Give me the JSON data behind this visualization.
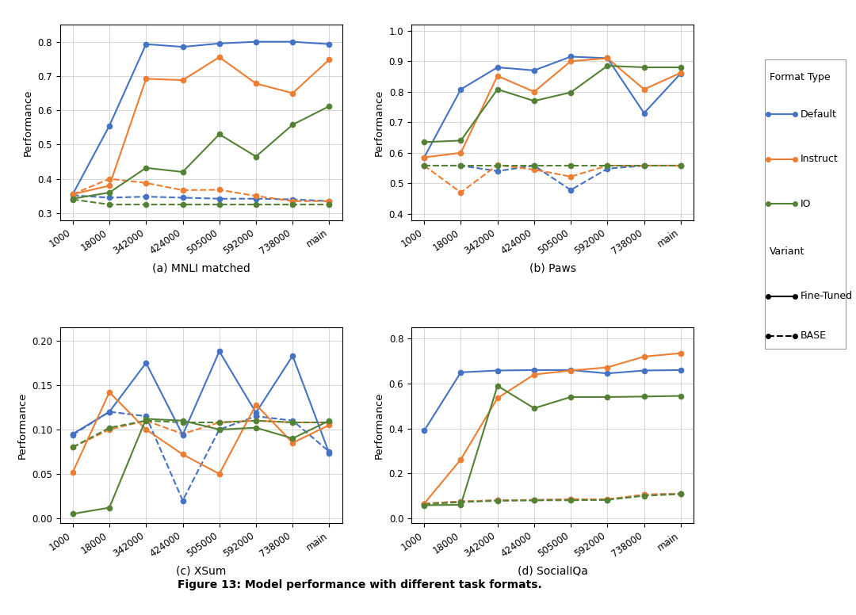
{
  "x_labels": [
    "1000",
    "18000",
    "342000",
    "424000",
    "505000",
    "592000",
    "738000",
    "main"
  ],
  "colors": {
    "default": "#4472C4",
    "instruct": "#ED7D31",
    "io": "#548235"
  },
  "mnli": {
    "default_ft": [
      0.355,
      0.555,
      0.793,
      0.785,
      0.795,
      0.8,
      0.8,
      0.793
    ],
    "instruct_ft": [
      0.355,
      0.38,
      0.692,
      0.688,
      0.755,
      0.678,
      0.65,
      0.748
    ],
    "io_ft": [
      0.342,
      0.36,
      0.432,
      0.42,
      0.53,
      0.465,
      0.558,
      0.612
    ],
    "default_base": [
      0.352,
      0.345,
      0.348,
      0.345,
      0.342,
      0.342,
      0.34,
      0.335
    ],
    "instruct_base": [
      0.355,
      0.4,
      0.388,
      0.367,
      0.368,
      0.35,
      0.335,
      0.335
    ],
    "io_base": [
      0.34,
      0.325,
      0.325,
      0.325,
      0.325,
      0.325,
      0.325,
      0.325
    ],
    "ylim": [
      0.28,
      0.85
    ],
    "yticks": [
      0.3,
      0.4,
      0.5,
      0.6,
      0.7,
      0.8
    ],
    "title": "(a) MNLI matched"
  },
  "paws": {
    "default_ft": [
      0.585,
      0.808,
      0.88,
      0.87,
      0.915,
      0.91,
      0.73,
      0.86
    ],
    "instruct_ft": [
      0.585,
      0.6,
      0.852,
      0.8,
      0.9,
      0.91,
      0.808,
      0.862
    ],
    "io_ft": [
      0.635,
      0.64,
      0.808,
      0.77,
      0.798,
      0.885,
      0.88,
      0.88
    ],
    "default_base": [
      0.558,
      0.558,
      0.54,
      0.558,
      0.478,
      0.548,
      0.558,
      0.558
    ],
    "instruct_base": [
      0.558,
      0.47,
      0.56,
      0.545,
      0.522,
      0.558,
      0.558,
      0.558
    ],
    "io_base": [
      0.558,
      0.558,
      0.558,
      0.558,
      0.558,
      0.558,
      0.558,
      0.558
    ],
    "ylim": [
      0.38,
      1.02
    ],
    "yticks": [
      0.4,
      0.5,
      0.6,
      0.7,
      0.8,
      0.9,
      1.0
    ],
    "title": "(b) Paws"
  },
  "xsum": {
    "default_ft": [
      0.095,
      0.12,
      0.175,
      0.094,
      0.188,
      0.119,
      0.183,
      0.073
    ],
    "instruct_ft": [
      0.052,
      0.142,
      0.1,
      0.072,
      0.05,
      0.128,
      0.085,
      0.105
    ],
    "io_ft": [
      0.005,
      0.012,
      0.112,
      0.11,
      0.1,
      0.102,
      0.09,
      0.11
    ],
    "default_base": [
      0.094,
      0.12,
      0.115,
      0.02,
      0.1,
      0.115,
      0.11,
      0.075
    ],
    "instruct_base": [
      0.08,
      0.1,
      0.11,
      0.095,
      0.108,
      0.11,
      0.108,
      0.108
    ],
    "io_base": [
      0.08,
      0.102,
      0.11,
      0.108,
      0.108,
      0.11,
      0.108,
      0.108
    ],
    "ylim": [
      -0.005,
      0.215
    ],
    "yticks": [
      0.0,
      0.05,
      0.1,
      0.15,
      0.2
    ],
    "title": "(c) XSum"
  },
  "socialIQa": {
    "default_ft": [
      0.39,
      0.65,
      0.658,
      0.66,
      0.66,
      0.645,
      0.658,
      0.66
    ],
    "instruct_ft": [
      0.065,
      0.262,
      0.535,
      0.64,
      0.658,
      0.672,
      0.72,
      0.735
    ],
    "io_ft": [
      0.058,
      0.06,
      0.59,
      0.49,
      0.54,
      0.54,
      0.542,
      0.545
    ],
    "default_base": [
      0.065,
      0.075,
      0.08,
      0.08,
      0.085,
      0.082,
      0.105,
      0.11
    ],
    "instruct_base": [
      0.065,
      0.075,
      0.08,
      0.082,
      0.085,
      0.085,
      0.105,
      0.11
    ],
    "io_base": [
      0.062,
      0.072,
      0.078,
      0.08,
      0.08,
      0.082,
      0.1,
      0.108
    ],
    "ylim": [
      -0.02,
      0.85
    ],
    "yticks": [
      0.0,
      0.2,
      0.4,
      0.6,
      0.8
    ],
    "title": "(d) SocialIQa"
  },
  "figure_title": "Figure 13: Model performance with different task formats.",
  "ylabel": "Performance",
  "legend": {
    "format_type": "Format Type",
    "default": "Default",
    "instruct": "Instruct",
    "io": "IO",
    "variant": "Variant",
    "fine_tuned": "Fine-Tuned",
    "base": "BASE"
  }
}
